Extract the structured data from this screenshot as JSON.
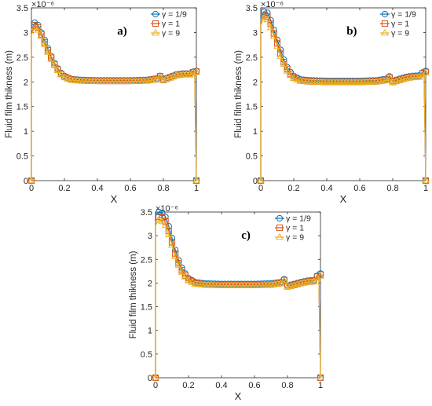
{
  "colors": {
    "axis": "#262626",
    "series": [
      "#0072BD",
      "#D95319",
      "#EDB120"
    ]
  },
  "marker_icons": [
    "circle-marker-icon",
    "square-marker-icon",
    "triangle-marker-icon"
  ],
  "chart_data": [
    {
      "type": "line",
      "panel_label": "a)",
      "xlabel": "X",
      "ylabel": "Fluid film thikness (m)",
      "y_exponent": "×10⁻⁶",
      "xlim": [
        0,
        1
      ],
      "ylim": [
        0,
        3.5
      ],
      "xticks": [
        "0",
        "0.2",
        "0.4",
        "0.6",
        "0.8",
        "1"
      ],
      "yticks": [
        "0",
        "0.5",
        "1",
        "1.5",
        "2",
        "2.5",
        "3",
        "3.5"
      ],
      "grid": false,
      "legend_position": "top-right",
      "series": [
        {
          "name": "γ = 1/9",
          "marker": "circle",
          "x": [
            0,
            0,
            0.02,
            0.04,
            0.06,
            0.08,
            0.1,
            0.12,
            0.14,
            0.16,
            0.18,
            0.2,
            0.24,
            0.3,
            0.4,
            0.5,
            0.6,
            0.7,
            0.76,
            0.78,
            0.8,
            0.84,
            0.88,
            0.92,
            0.96,
            0.99,
            1
          ],
          "y": [
            0,
            3.05,
            3.2,
            3.15,
            3.0,
            2.85,
            2.68,
            2.52,
            2.38,
            2.27,
            2.18,
            2.12,
            2.06,
            2.04,
            2.03,
            2.03,
            2.03,
            2.04,
            2.07,
            2.12,
            2.05,
            2.1,
            2.15,
            2.17,
            2.17,
            2.22,
            0
          ]
        },
        {
          "name": "γ = 1",
          "marker": "square",
          "x": [
            0,
            0,
            0.02,
            0.04,
            0.06,
            0.08,
            0.1,
            0.12,
            0.14,
            0.16,
            0.18,
            0.2,
            0.24,
            0.3,
            0.4,
            0.5,
            0.6,
            0.7,
            0.76,
            0.78,
            0.8,
            0.84,
            0.88,
            0.92,
            0.96,
            0.99,
            1
          ],
          "y": [
            0,
            3.0,
            3.15,
            3.1,
            2.96,
            2.8,
            2.64,
            2.49,
            2.35,
            2.25,
            2.16,
            2.1,
            2.05,
            2.03,
            2.02,
            2.02,
            2.02,
            2.03,
            2.06,
            2.11,
            2.04,
            2.09,
            2.14,
            2.16,
            2.16,
            2.21,
            0
          ]
        },
        {
          "name": "γ = 9",
          "marker": "triangle",
          "x": [
            0,
            0,
            0.02,
            0.04,
            0.06,
            0.08,
            0.1,
            0.12,
            0.14,
            0.16,
            0.18,
            0.2,
            0.24,
            0.3,
            0.4,
            0.5,
            0.6,
            0.7,
            0.76,
            0.78,
            0.8,
            0.84,
            0.88,
            0.92,
            0.96,
            0.99,
            1
          ],
          "y": [
            0,
            2.95,
            3.1,
            3.05,
            2.92,
            2.76,
            2.6,
            2.46,
            2.33,
            2.23,
            2.15,
            2.09,
            2.04,
            2.02,
            2.01,
            2.01,
            2.01,
            2.02,
            2.05,
            2.1,
            2.03,
            2.08,
            2.13,
            2.15,
            2.15,
            2.2,
            0
          ]
        }
      ]
    },
    {
      "type": "line",
      "panel_label": "b)",
      "xlabel": "X",
      "ylabel": "Fluid film thikness (m)",
      "y_exponent": "×10⁻⁶",
      "xlim": [
        0,
        1
      ],
      "ylim": [
        0,
        3.5
      ],
      "xticks": [
        "0",
        "0.2",
        "0.4",
        "0.6",
        "0.8",
        "1"
      ],
      "yticks": [
        "0",
        "0.5",
        "1",
        "1.5",
        "2",
        "2.5",
        "3",
        "3.5"
      ],
      "grid": false,
      "legend_position": "top-right",
      "series": [
        {
          "name": "γ = 1/9",
          "marker": "circle",
          "x": [
            0,
            0,
            0.02,
            0.04,
            0.06,
            0.08,
            0.1,
            0.12,
            0.14,
            0.16,
            0.18,
            0.2,
            0.24,
            0.3,
            0.4,
            0.5,
            0.6,
            0.7,
            0.76,
            0.78,
            0.8,
            0.84,
            0.88,
            0.92,
            0.96,
            0.99,
            1
          ],
          "y": [
            0,
            3.3,
            3.42,
            3.4,
            3.25,
            3.05,
            2.85,
            2.65,
            2.45,
            2.3,
            2.2,
            2.12,
            2.05,
            2.03,
            2.02,
            2.02,
            2.02,
            2.03,
            2.06,
            2.11,
            2.02,
            2.06,
            2.1,
            2.12,
            2.13,
            2.22,
            0
          ]
        },
        {
          "name": "γ = 1",
          "marker": "square",
          "x": [
            0,
            0,
            0.02,
            0.04,
            0.06,
            0.08,
            0.1,
            0.12,
            0.14,
            0.16,
            0.18,
            0.2,
            0.24,
            0.3,
            0.4,
            0.5,
            0.6,
            0.7,
            0.76,
            0.78,
            0.8,
            0.84,
            0.88,
            0.92,
            0.96,
            0.99,
            1
          ],
          "y": [
            0,
            3.22,
            3.36,
            3.33,
            3.18,
            2.98,
            2.78,
            2.58,
            2.4,
            2.26,
            2.16,
            2.09,
            2.03,
            2.01,
            2.0,
            2.0,
            2.0,
            2.01,
            2.04,
            2.09,
            2.0,
            2.04,
            2.08,
            2.1,
            2.11,
            2.2,
            0
          ]
        },
        {
          "name": "γ = 9",
          "marker": "triangle",
          "x": [
            0,
            0,
            0.02,
            0.04,
            0.06,
            0.08,
            0.1,
            0.12,
            0.14,
            0.16,
            0.18,
            0.2,
            0.24,
            0.3,
            0.4,
            0.5,
            0.6,
            0.7,
            0.76,
            0.78,
            0.8,
            0.84,
            0.88,
            0.92,
            0.96,
            0.99,
            1
          ],
          "y": [
            0,
            3.15,
            3.3,
            3.26,
            3.1,
            2.92,
            2.72,
            2.52,
            2.36,
            2.22,
            2.13,
            2.07,
            2.02,
            2.0,
            1.99,
            1.99,
            1.99,
            2.0,
            2.03,
            2.08,
            1.99,
            2.03,
            2.07,
            2.09,
            2.1,
            2.18,
            0
          ]
        }
      ]
    },
    {
      "type": "line",
      "panel_label": "c)",
      "xlabel": "X",
      "ylabel": "Fluid film thikness (m)",
      "y_exponent": "×10⁻⁶",
      "xlim": [
        0,
        1
      ],
      "ylim": [
        0,
        3.5
      ],
      "xticks": [
        "0",
        "0.2",
        "0.4",
        "0.6",
        "0.8",
        "1"
      ],
      "yticks": [
        "0",
        "0.5",
        "1",
        "1.5",
        "2",
        "2.5",
        "3",
        "3.5"
      ],
      "grid": false,
      "legend_position": "top-right",
      "series": [
        {
          "name": "γ = 1/9",
          "marker": "circle",
          "x": [
            0,
            0,
            0.02,
            0.04,
            0.06,
            0.08,
            0.1,
            0.12,
            0.14,
            0.16,
            0.18,
            0.2,
            0.24,
            0.3,
            0.4,
            0.5,
            0.6,
            0.7,
            0.76,
            0.78,
            0.8,
            0.84,
            0.88,
            0.92,
            0.96,
            0.99,
            1
          ],
          "y": [
            0,
            3.42,
            3.5,
            3.48,
            3.4,
            3.2,
            2.95,
            2.7,
            2.48,
            2.32,
            2.2,
            2.1,
            2.02,
            1.99,
            1.98,
            1.98,
            1.98,
            1.99,
            2.02,
            2.08,
            1.95,
            1.98,
            2.02,
            2.05,
            2.06,
            2.2,
            0
          ]
        },
        {
          "name": "γ = 1",
          "marker": "square",
          "x": [
            0,
            0,
            0.02,
            0.04,
            0.06,
            0.08,
            0.1,
            0.12,
            0.14,
            0.16,
            0.18,
            0.2,
            0.24,
            0.3,
            0.4,
            0.5,
            0.6,
            0.7,
            0.76,
            0.78,
            0.8,
            0.84,
            0.88,
            0.92,
            0.96,
            0.99,
            1
          ],
          "y": [
            0,
            3.3,
            3.4,
            3.38,
            3.3,
            3.1,
            2.86,
            2.62,
            2.42,
            2.27,
            2.16,
            2.07,
            2.0,
            1.97,
            1.96,
            1.96,
            1.96,
            1.97,
            2.0,
            2.06,
            1.93,
            1.96,
            2.0,
            2.03,
            2.04,
            2.18,
            0
          ]
        },
        {
          "name": "γ = 9",
          "marker": "triangle",
          "x": [
            0,
            0,
            0.02,
            0.04,
            0.06,
            0.08,
            0.1,
            0.12,
            0.14,
            0.16,
            0.18,
            0.2,
            0.24,
            0.3,
            0.4,
            0.5,
            0.6,
            0.7,
            0.76,
            0.78,
            0.8,
            0.84,
            0.88,
            0.92,
            0.96,
            0.99,
            1
          ],
          "y": [
            0,
            3.22,
            3.33,
            3.3,
            3.22,
            3.02,
            2.8,
            2.56,
            2.38,
            2.23,
            2.13,
            2.05,
            1.98,
            1.96,
            1.95,
            1.95,
            1.95,
            1.96,
            1.99,
            2.05,
            1.92,
            1.95,
            1.99,
            2.02,
            2.03,
            2.15,
            0
          ]
        }
      ]
    }
  ]
}
